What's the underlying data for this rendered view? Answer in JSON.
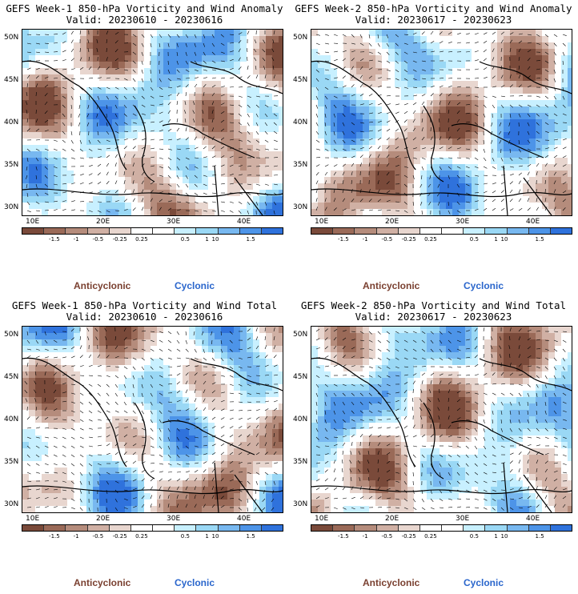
{
  "panels": [
    {
      "title": "GEFS Week-1 850-hPa Vorticity and Wind Anomaly",
      "valid": "Valid: 20230610 - 20230616"
    },
    {
      "title": "GEFS Week-2 850-hPa Vorticity and Wind Anomaly",
      "valid": "Valid: 20230617 - 20230623"
    },
    {
      "title": "GEFS Week-1 850-hPa Vorticity and Wind Total",
      "valid": "Valid: 20230610 - 20230616"
    },
    {
      "title": "GEFS Week-2 850-hPa Vorticity and Wind Total",
      "valid": "Valid: 20230617 - 20230623"
    }
  ],
  "axes": {
    "lat_labels": [
      "50N",
      "45N",
      "40N",
      "35N",
      "30N"
    ],
    "lon_labels": [
      "10E",
      "20E",
      "30E",
      "40E"
    ]
  },
  "colorbar": {
    "labels": [
      "-1.5",
      "-1",
      "-0.5",
      "-0.25",
      "0.25",
      "0.5",
      "1",
      "1.5"
    ],
    "center_label": "10",
    "colors": [
      "#7a4a3a",
      "#9a6a58",
      "#b58c7c",
      "#d0b0a4",
      "#e8d6cf",
      "#ffffff",
      "#ffffff",
      "#c8f0ff",
      "#9ad8f5",
      "#78b8f0",
      "#4d94e8",
      "#2f72dc"
    ]
  },
  "legend": {
    "anticyclonic": "Anticyclonic",
    "cyclonic": "Cyclonic",
    "anticyclonic_color": "#7a4030",
    "cyclonic_color": "#2a66cc"
  }
}
